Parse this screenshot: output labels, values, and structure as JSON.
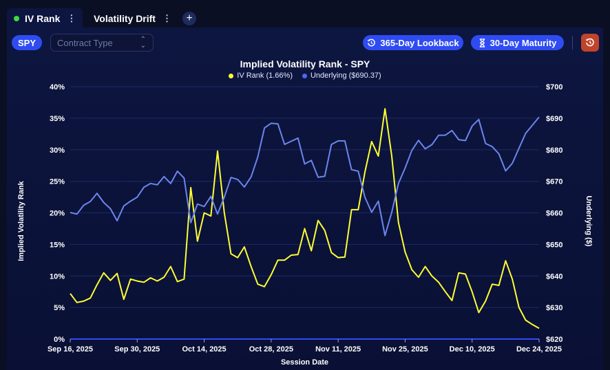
{
  "tabs": [
    {
      "label": "IV Rank",
      "active": true
    },
    {
      "label": "Volatility Drift",
      "active": false
    }
  ],
  "tab_menu_glyph": "⋮",
  "add_tab_glyph": "+",
  "toolbar": {
    "ticker": "SPY",
    "contract_type_placeholder": "Contract Type",
    "lookback_label": "365-Day Lookback",
    "maturity_label": "30-Day Maturity",
    "reset_icon": "reset-icon"
  },
  "colors": {
    "accent": "#2f4cf2",
    "iv_line": "#ffff33",
    "underlying_line": "#6c86ee",
    "reset_button": "#c0442a",
    "active_dot": "#3ddc3d"
  },
  "chart_data": {
    "type": "line",
    "title": "Implied Volatility Rank - SPY",
    "xlabel": "Session Date",
    "ylabel_left": "Implied Volatility Rank",
    "ylabel_right": "Underlying ($)",
    "x_ticks": [
      "Sep 16, 2025",
      "Sep 30, 2025",
      "Oct 14, 2025",
      "Oct 28, 2025",
      "Nov 11, 2025",
      "Nov 25, 2025",
      "Dec 10, 2025",
      "Dec 24, 2025"
    ],
    "y_left_ticks": [
      "0%",
      "5%",
      "10%",
      "15%",
      "20%",
      "25%",
      "30%",
      "35%",
      "40%"
    ],
    "y_right_ticks": [
      "$620",
      "$630",
      "$640",
      "$650",
      "$660",
      "$670",
      "$680",
      "$690",
      "$700"
    ],
    "ylim_left": [
      0,
      40
    ],
    "ylim_right": [
      620,
      700
    ],
    "grid": true,
    "legend_position": "top-center",
    "series": [
      {
        "name": "IV Rank (1.66%)",
        "axis": "left",
        "values": [
          7.2,
          5.8,
          6.0,
          6.5,
          8.6,
          10.5,
          9.3,
          10.4,
          6.3,
          9.5,
          9.2,
          9.0,
          9.7,
          9.2,
          9.8,
          11.5,
          9.1,
          9.5,
          24.0,
          15.5,
          20.0,
          19.5,
          29.8,
          20.0,
          13.5,
          12.9,
          14.6,
          11.5,
          8.7,
          8.3,
          10.2,
          12.5,
          12.5,
          13.3,
          13.4,
          17.5,
          14.0,
          18.8,
          17.2,
          13.7,
          12.9,
          13.0,
          20.5,
          20.5,
          26.5,
          31.3,
          29.0,
          36.5,
          29.0,
          18.5,
          13.8,
          11.0,
          9.8,
          11.5,
          10.0,
          9.0,
          7.5,
          6.1,
          10.5,
          10.3,
          7.5,
          4.2,
          6.0,
          8.7,
          8.5,
          12.4,
          9.5,
          5.0,
          3.0,
          2.3,
          1.7
        ]
      },
      {
        "name": "Underlying ($690.37)",
        "axis": "right",
        "values": [
          660.1,
          659.6,
          662.4,
          663.6,
          666.2,
          663.3,
          661.3,
          657.5,
          662.2,
          663.7,
          665.0,
          668.1,
          669.3,
          668.9,
          671.5,
          669.3,
          673.2,
          671.0,
          656.9,
          662.8,
          662.0,
          665.2,
          659.6,
          665.0,
          671.2,
          670.6,
          668.2,
          671.4,
          677.7,
          686.9,
          688.4,
          688.2,
          681.7,
          682.7,
          683.7,
          675.5,
          676.6,
          671.3,
          671.6,
          681.7,
          682.8,
          682.8,
          673.7,
          673.2,
          664.9,
          660.2,
          663.7,
          652.8,
          660.2,
          669.3,
          674.2,
          679.8,
          683.0,
          680.3,
          681.6,
          684.6,
          684.6,
          686.1,
          683.2,
          682.9,
          687.5,
          689.6,
          682.0,
          681.0,
          678.7,
          673.3,
          675.7,
          680.5,
          685.2,
          687.8,
          690.37
        ]
      }
    ]
  }
}
